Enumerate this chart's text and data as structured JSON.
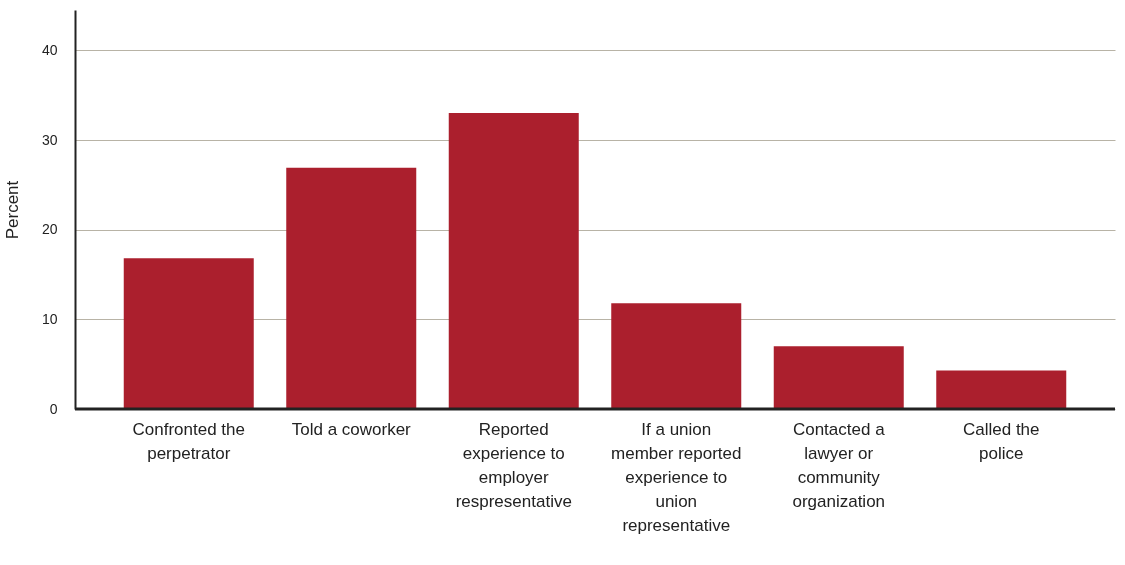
{
  "chart_data": {
    "type": "bar",
    "ylabel": "Percent",
    "categories": [
      "Confronted the perpetrator",
      "Told a coworker",
      "Reported experience to employer respresentative",
      "If a union member reported experience to union representative",
      "Contacted a lawyer or community organization",
      "Called the police"
    ],
    "values": [
      16.8,
      26.9,
      33,
      11.8,
      7,
      4.3
    ],
    "color": "#ab1f2d",
    "ylim": [
      0,
      44.5
    ],
    "yticks": [
      0,
      10,
      20,
      30,
      40
    ],
    "grid": "y"
  }
}
